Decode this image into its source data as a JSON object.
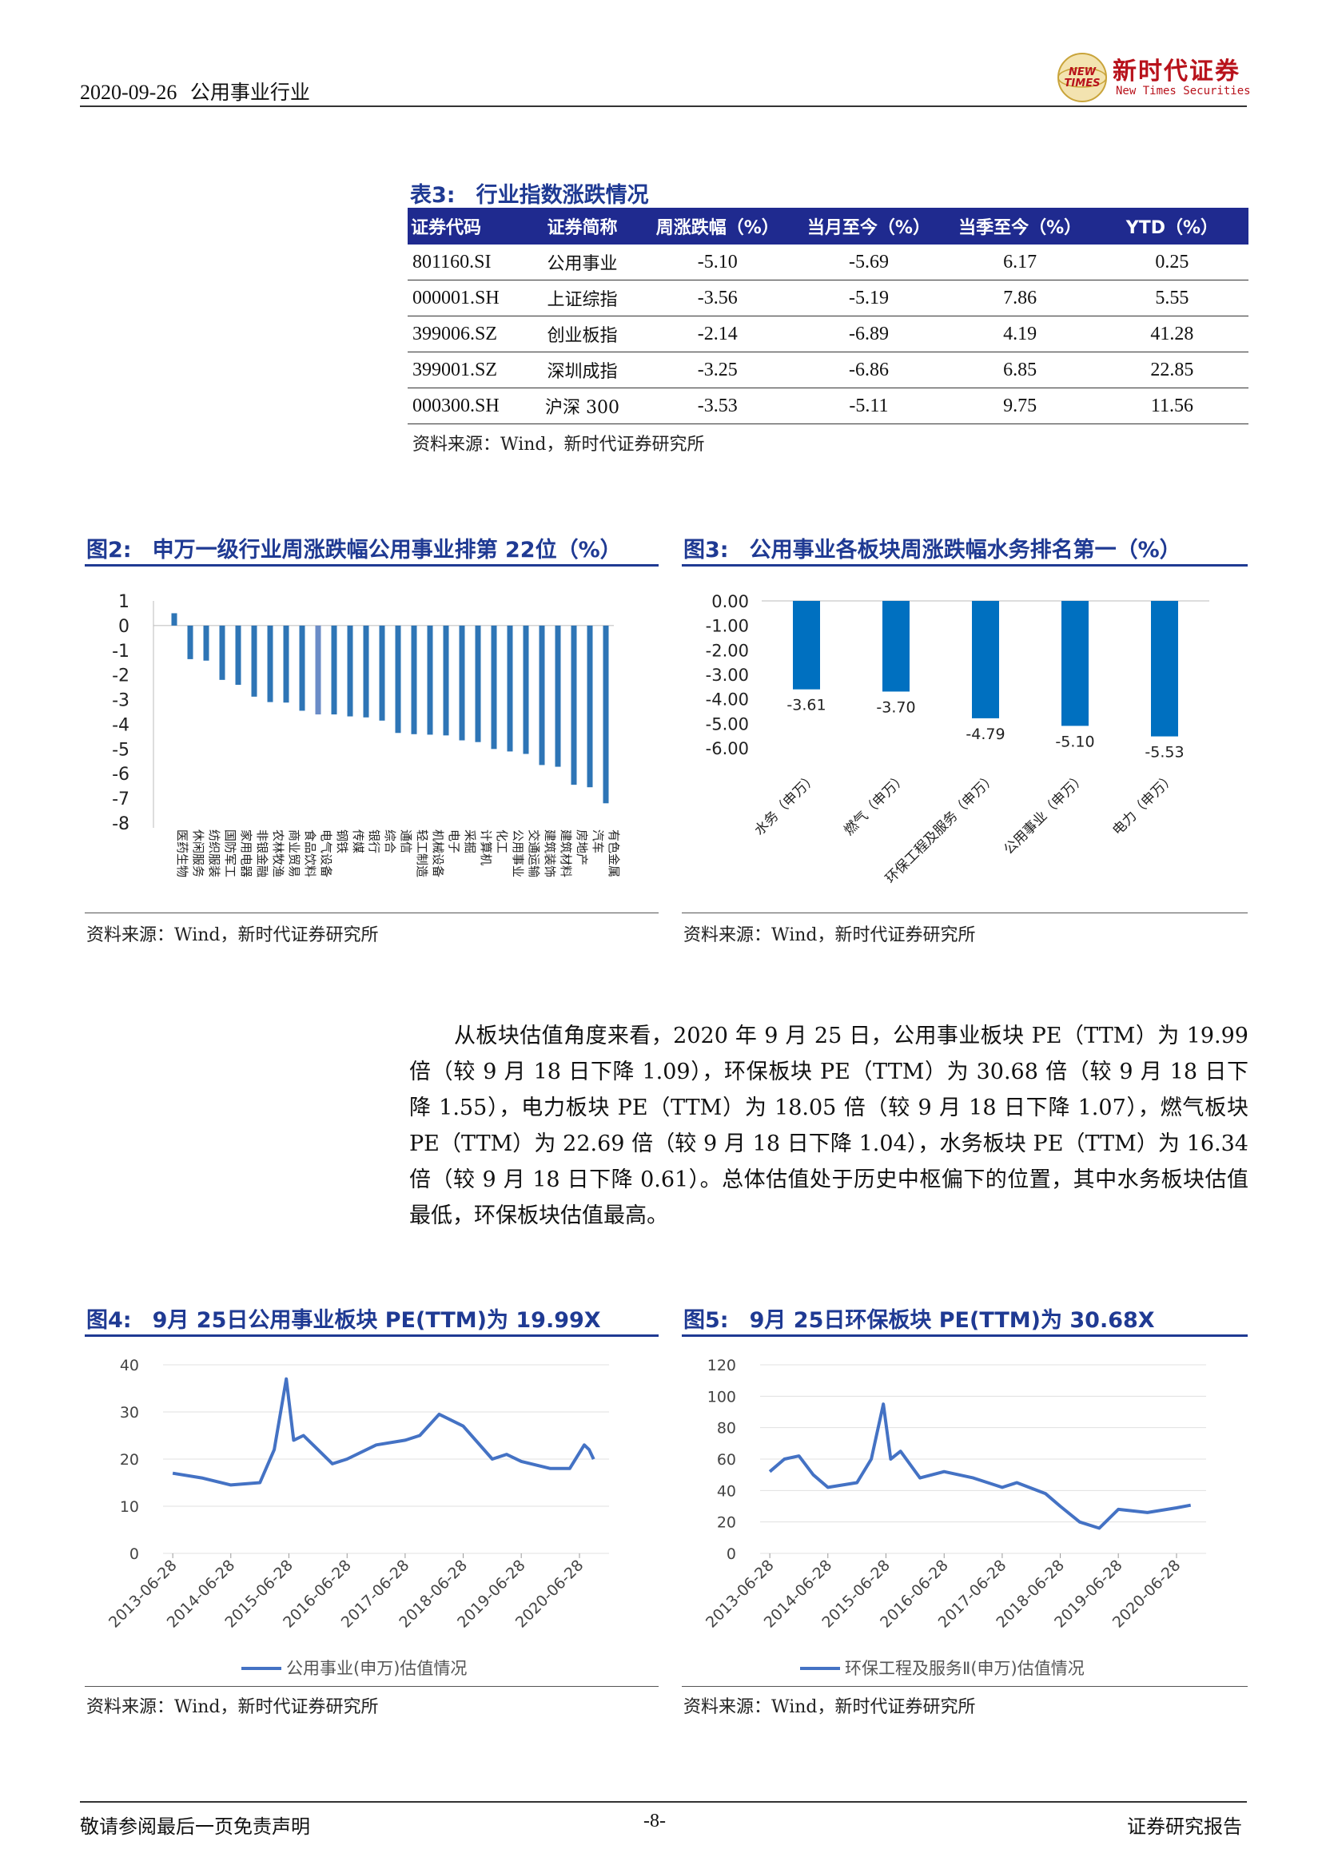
{
  "header": {
    "date": "2020-09-26",
    "industry": "公用事业行业",
    "logo_mark": "NEW TIMES",
    "logo_cn": "新时代证券",
    "logo_en": "New Times Securities"
  },
  "table3": {
    "caption_num": "表3:",
    "caption_title": "行业指数涨跌情况",
    "columns": [
      "证券代码",
      "证券简称",
      "周涨跌幅（%）",
      "当月至今（%）",
      "当季至今（%）",
      "YTD（%）"
    ],
    "rows": [
      [
        "801160.SI",
        "公用事业",
        "-5.10",
        "-5.69",
        "6.17",
        "0.25"
      ],
      [
        "000001.SH",
        "上证综指",
        "-3.56",
        "-5.19",
        "7.86",
        "5.55"
      ],
      [
        "399006.SZ",
        "创业板指",
        "-2.14",
        "-6.89",
        "4.19",
        "41.28"
      ],
      [
        "399001.SZ",
        "深圳成指",
        "-3.25",
        "-6.86",
        "6.85",
        "22.85"
      ],
      [
        "000300.SH",
        "沪深 300",
        "-3.53",
        "-5.11",
        "9.75",
        "11.56"
      ]
    ],
    "source": "资料来源：Wind，新时代证券研究所"
  },
  "fig2": {
    "caption_num": "图2:",
    "caption_title": "申万一级行业周涨跌幅公用事业排第 22位（%）",
    "source": "资料来源：Wind，新时代证券研究所",
    "chart_data": {
      "type": "bar",
      "categories": [
        "医药生物",
        "休闲服务",
        "纺织服装",
        "国防军工",
        "家用电器",
        "非银金融",
        "农林牧渔",
        "商业贸易",
        "食品饮料",
        "电气设备",
        "钢铁",
        "传媒",
        "银行",
        "综合",
        "通信",
        "轻工制造",
        "机械设备",
        "电子",
        "采掘",
        "计算机",
        "化工",
        "公用事业",
        "交通运输",
        "建筑装饰",
        "建筑材料",
        "房地产",
        "汽车",
        "有色金属"
      ],
      "values": [
        0.5,
        -1.36,
        -1.42,
        -2.2,
        -2.4,
        -2.88,
        -3.1,
        -3.12,
        -3.45,
        -3.6,
        -3.6,
        -3.68,
        -3.72,
        -3.85,
        -4.35,
        -4.4,
        -4.42,
        -4.45,
        -4.65,
        -4.72,
        -5.0,
        -5.1,
        -5.2,
        -5.65,
        -5.72,
        -6.45,
        -6.55,
        -7.2
      ],
      "highlight_index": 9,
      "ylim": [
        -8,
        1
      ],
      "yticks": [
        1,
        0,
        -1,
        -2,
        -3,
        -4,
        -5,
        -6,
        -7,
        -8
      ],
      "color": "#2e75b6",
      "highlight_color": "#6b8cc7"
    }
  },
  "fig3": {
    "caption_num": "图3:",
    "caption_title": "公用事业各板块周涨跌幅水务排名第一（%）",
    "source": "资料来源：Wind，新时代证券研究所",
    "chart_data": {
      "type": "bar",
      "categories": [
        "水务（申万）",
        "燃气（申万）",
        "环保工程及服务（申万）",
        "公用事业（申万）",
        "电力（申万）"
      ],
      "values": [
        -3.61,
        -3.7,
        -4.79,
        -5.1,
        -5.53
      ],
      "value_labels": [
        "-3.61",
        "-3.70",
        "-4.79",
        "-5.10",
        "-5.53"
      ],
      "ylim": [
        -6,
        0
      ],
      "yticks": [
        "0.00",
        "-1.00",
        "-2.00",
        "-3.00",
        "-4.00",
        "-5.00",
        "-6.00"
      ],
      "color": "#0070c0"
    }
  },
  "paragraph": "从板块估值角度来看，2020 年 9 月 25 日，公用事业板块 PE（TTM）为 19.99 倍（较 9 月 18 日下降 1.09），环保板块 PE（TTM）为 30.68 倍（较 9 月 18 日下降 1.55），电力板块 PE（TTM）为 18.05 倍（较 9 月 18 日下降 1.07），燃气板块 PE（TTM）为 22.69 倍（较 9 月 18 日下降 1.04），水务板块 PE（TTM）为 16.34 倍（较 9 月 18 日下降 0.61）。总体估值处于历史中枢偏下的位置，其中水务板块估值最低，环保板块估值最高。",
  "fig4": {
    "caption_num": "图4:",
    "caption_title": "9月 25日公用事业板块 PE(TTM)为 19.99X",
    "source": "资料来源：Wind，新时代证券研究所",
    "chart_data": {
      "type": "line",
      "x": [
        "2013-06-28",
        "2013-12-28",
        "2014-06-28",
        "2014-12-28",
        "2015-03-28",
        "2015-06-12",
        "2015-07-28",
        "2015-09-28",
        "2015-12-28",
        "2016-03-28",
        "2016-06-28",
        "2016-12-28",
        "2017-06-28",
        "2017-09-28",
        "2018-01-28",
        "2018-06-28",
        "2018-12-28",
        "2019-03-28",
        "2019-06-28",
        "2019-12-28",
        "2020-04-28",
        "2020-07-28",
        "2020-08-28",
        "2020-09-25"
      ],
      "y": [
        17,
        16,
        14.5,
        15,
        22,
        37,
        24,
        25,
        22,
        19,
        20,
        23,
        24,
        25,
        29.5,
        27,
        20,
        21,
        19.5,
        18,
        18,
        23,
        22,
        19.99
      ],
      "ylim": [
        0,
        40
      ],
      "yticks": [
        "40",
        "30",
        "20",
        "10",
        "0"
      ],
      "xticks": [
        "2013-06-28",
        "2014-06-28",
        "2015-06-28",
        "2016-06-28",
        "2017-06-28",
        "2018-06-28",
        "2019-06-28",
        "2020-06-28"
      ],
      "legend": "公用事业(申万)估值情况",
      "color": "#4472c4"
    }
  },
  "fig5": {
    "caption_num": "图5:",
    "caption_title": "9月 25日环保板块 PE(TTM)为 30.68X",
    "source": "资料来源：Wind，新时代证券研究所",
    "chart_data": {
      "type": "line",
      "x": [
        "2013-06-28",
        "2013-09-28",
        "2013-12-28",
        "2014-03-28",
        "2014-06-28",
        "2014-12-28",
        "2015-03-28",
        "2015-06-12",
        "2015-07-28",
        "2015-09-28",
        "2016-01-28",
        "2016-06-28",
        "2016-12-28",
        "2017-06-28",
        "2017-09-28",
        "2018-03-28",
        "2018-06-28",
        "2018-10-28",
        "2019-02-28",
        "2019-06-28",
        "2019-12-28",
        "2020-06-28",
        "2020-09-25"
      ],
      "y": [
        52,
        60,
        62,
        50,
        42,
        45,
        60,
        95,
        60,
        65,
        48,
        52,
        48,
        42,
        45,
        38,
        30,
        20,
        16,
        28,
        26,
        29,
        30.68
      ],
      "ylim": [
        0,
        120
      ],
      "yticks": [
        "120",
        "100",
        "80",
        "60",
        "40",
        "20",
        "0"
      ],
      "xticks": [
        "2013-06-28",
        "2014-06-28",
        "2015-06-28",
        "2016-06-28",
        "2017-06-28",
        "2018-06-28",
        "2019-06-28",
        "2020-06-28"
      ],
      "legend": "环保工程及服务Ⅱ(申万)估值情况",
      "color": "#4472c4"
    }
  },
  "footer": {
    "left": "敬请参阅最后一页免责声明",
    "center": "-8-",
    "right": "证券研究报告"
  }
}
